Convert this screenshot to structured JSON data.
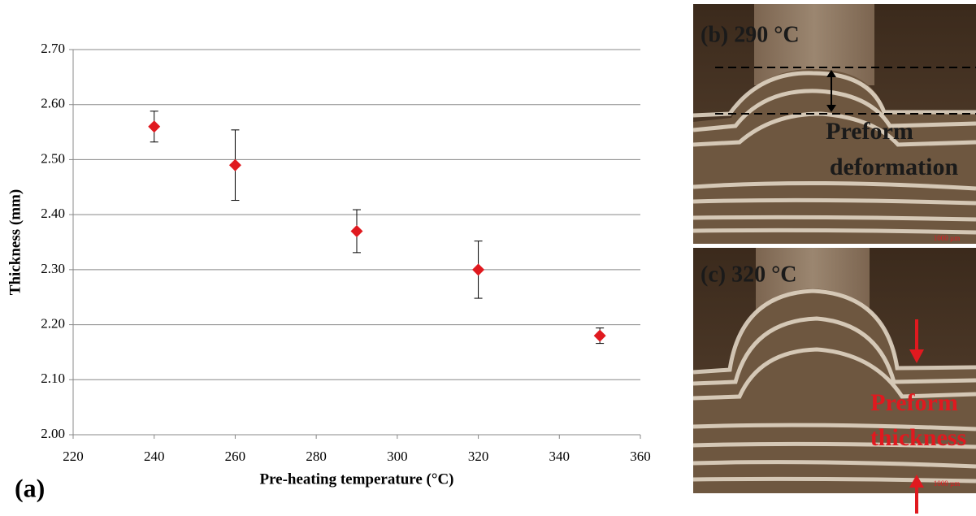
{
  "chart_data": {
    "type": "scatter",
    "x_label": "Pre-heating temperature (°C)",
    "y_label": "Thickness (mm)",
    "panel_label": "(a)",
    "x": [
      240,
      260,
      290,
      320,
      350
    ],
    "values": [
      2.56,
      2.49,
      2.37,
      2.3,
      2.18
    ],
    "errors": [
      0.028,
      0.064,
      0.039,
      0.052,
      0.014
    ],
    "color": "#e0191f",
    "xlim": [
      220,
      360
    ],
    "xticks": [
      220,
      240,
      260,
      280,
      300,
      320,
      340,
      360
    ],
    "ylim": [
      2.0,
      2.7
    ],
    "yticks": [
      {
        "value": 2.0,
        "label": "2.00"
      },
      {
        "value": 2.1,
        "label": "2.10"
      },
      {
        "value": 2.2,
        "label": "2.20"
      },
      {
        "value": 2.3,
        "label": "2.30"
      },
      {
        "value": 2.4,
        "label": "2.40"
      },
      {
        "value": 2.5,
        "label": "2.50"
      },
      {
        "value": 2.6,
        "label": "2.60"
      },
      {
        "value": 2.7,
        "label": "2.70"
      }
    ],
    "grid": true
  },
  "panels": [
    {
      "label": "(b) 290 °C",
      "annotation": [
        "Preform",
        "deformation"
      ],
      "scale_bar": "1000 µm"
    },
    {
      "label": "(c) 320 °C",
      "annotation": [
        "Preform",
        "thickness"
      ],
      "scale_bar": "1000 µm"
    }
  ]
}
